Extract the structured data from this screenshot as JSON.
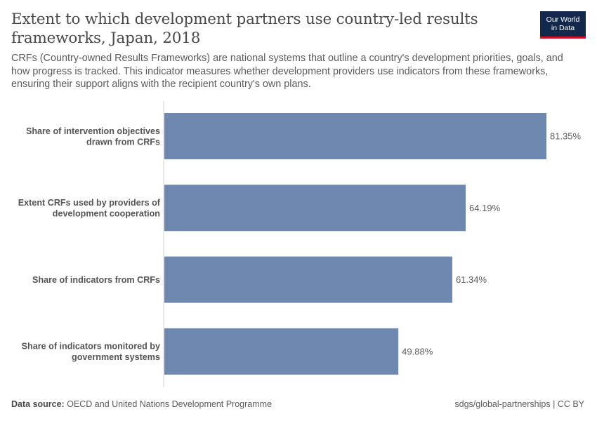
{
  "header": {
    "title": "Extent to which development partners use country-led results frameworks, Japan, 2018",
    "subtitle": "CRFs (Country-owned Results Frameworks) are national systems that outline a country's development priorities, goals, and how progress is tracked. This indicator measures whether development providers use indicators from these frameworks, ensuring their support aligns with the recipient country's own plans.",
    "logo_line1": "Our World",
    "logo_line2": "in Data"
  },
  "footer": {
    "source_label": "Data source:",
    "source_text": "OECD and United Nations Development Programme",
    "link_text": "sdgs/global-partnerships | CC BY"
  },
  "chart_data": {
    "type": "bar",
    "orientation": "horizontal",
    "categories": [
      [
        "Share of intervention objectives",
        "drawn from CRFs"
      ],
      [
        "Extent CRFs used by providers of",
        "development cooperation"
      ],
      [
        "Share of indicators from CRFs"
      ],
      [
        "Share of indicators monitored by",
        "government systems"
      ]
    ],
    "values": [
      81.35,
      64.19,
      61.34,
      49.88
    ],
    "value_labels": [
      "81.35%",
      "64.19%",
      "61.34%",
      "49.88%"
    ],
    "unit": "%",
    "xlim": [
      0,
      81.35
    ],
    "bar_color": "#6e88b0",
    "grid": false,
    "legend": "none"
  }
}
